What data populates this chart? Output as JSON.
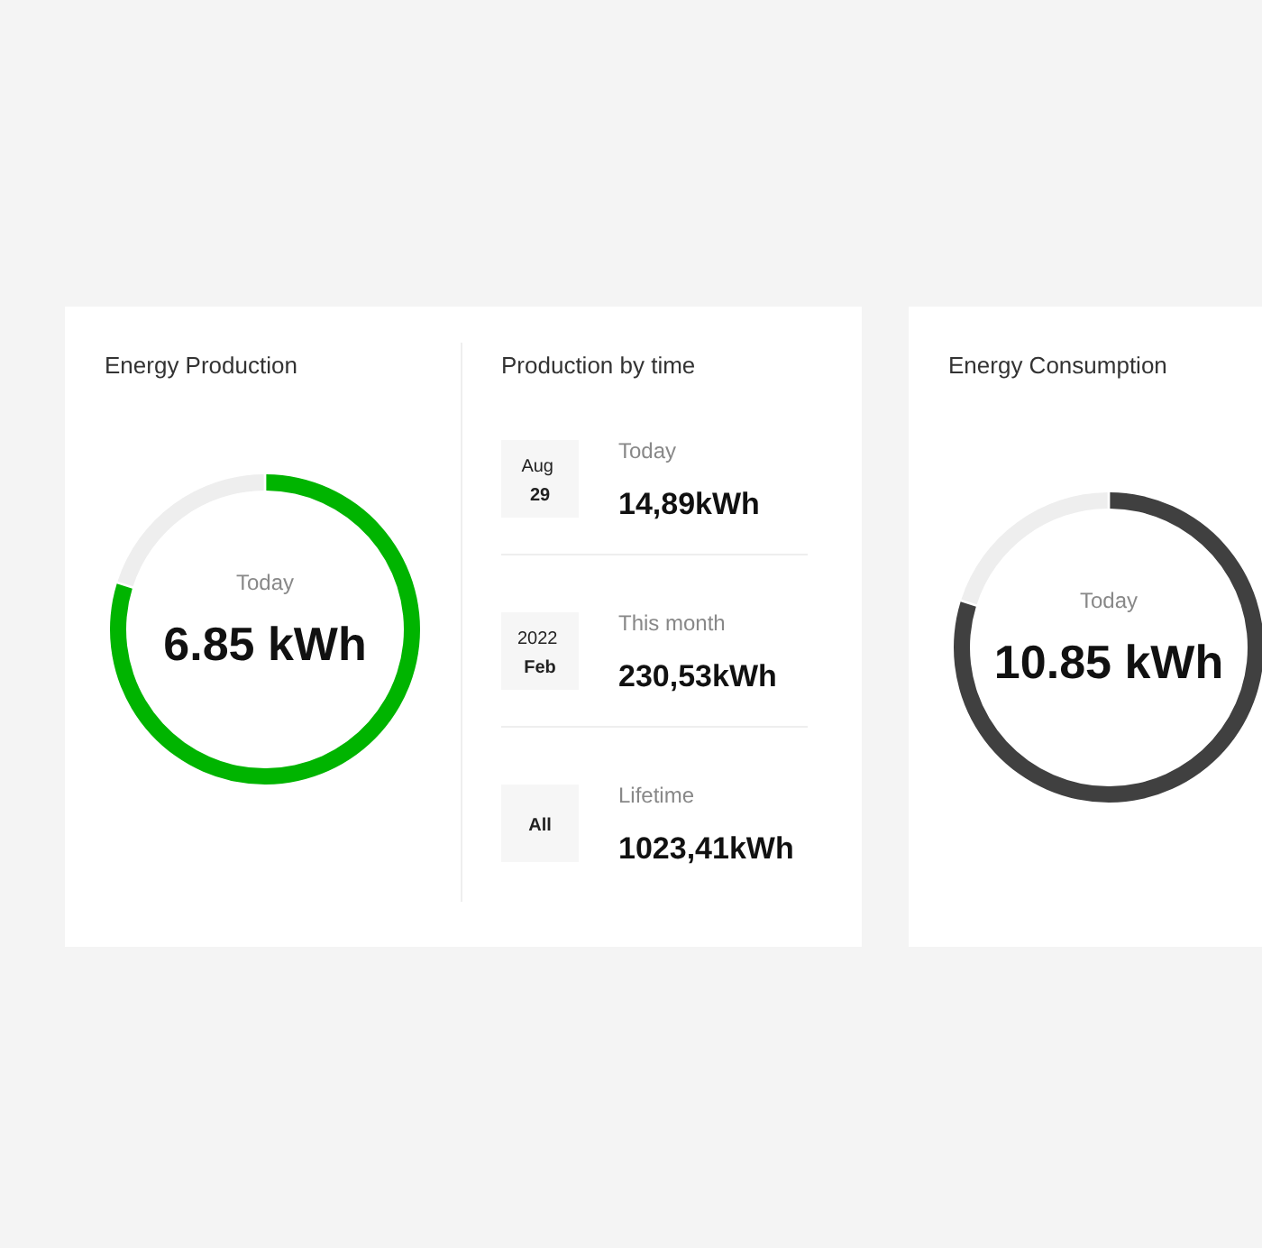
{
  "chart_data": [
    {
      "type": "donut",
      "title": "Energy Production",
      "categories": [
        null,
        null
      ],
      "values": [
        80,
        20
      ],
      "colors": [
        "#00b400",
        "#eeeeee"
      ],
      "annotations": [
        "Today",
        "6.85 kWh"
      ]
    },
    {
      "type": "other",
      "title": "Production by time",
      "annotations": [
        "Aug\n29",
        "Today",
        "14,89kWh",
        "2022\nFeb",
        "This month",
        "230,53kWh",
        "All",
        "Lifetime",
        "1023,41kWh"
      ]
    },
    {
      "type": "donut",
      "title": "Energy Consumption",
      "categories": [
        null,
        null
      ],
      "values": [
        80,
        20
      ],
      "colors": [
        "#404040",
        "#eeeeee"
      ],
      "annotations": [
        "Today",
        "10.85 kWh"
      ]
    }
  ]
}
